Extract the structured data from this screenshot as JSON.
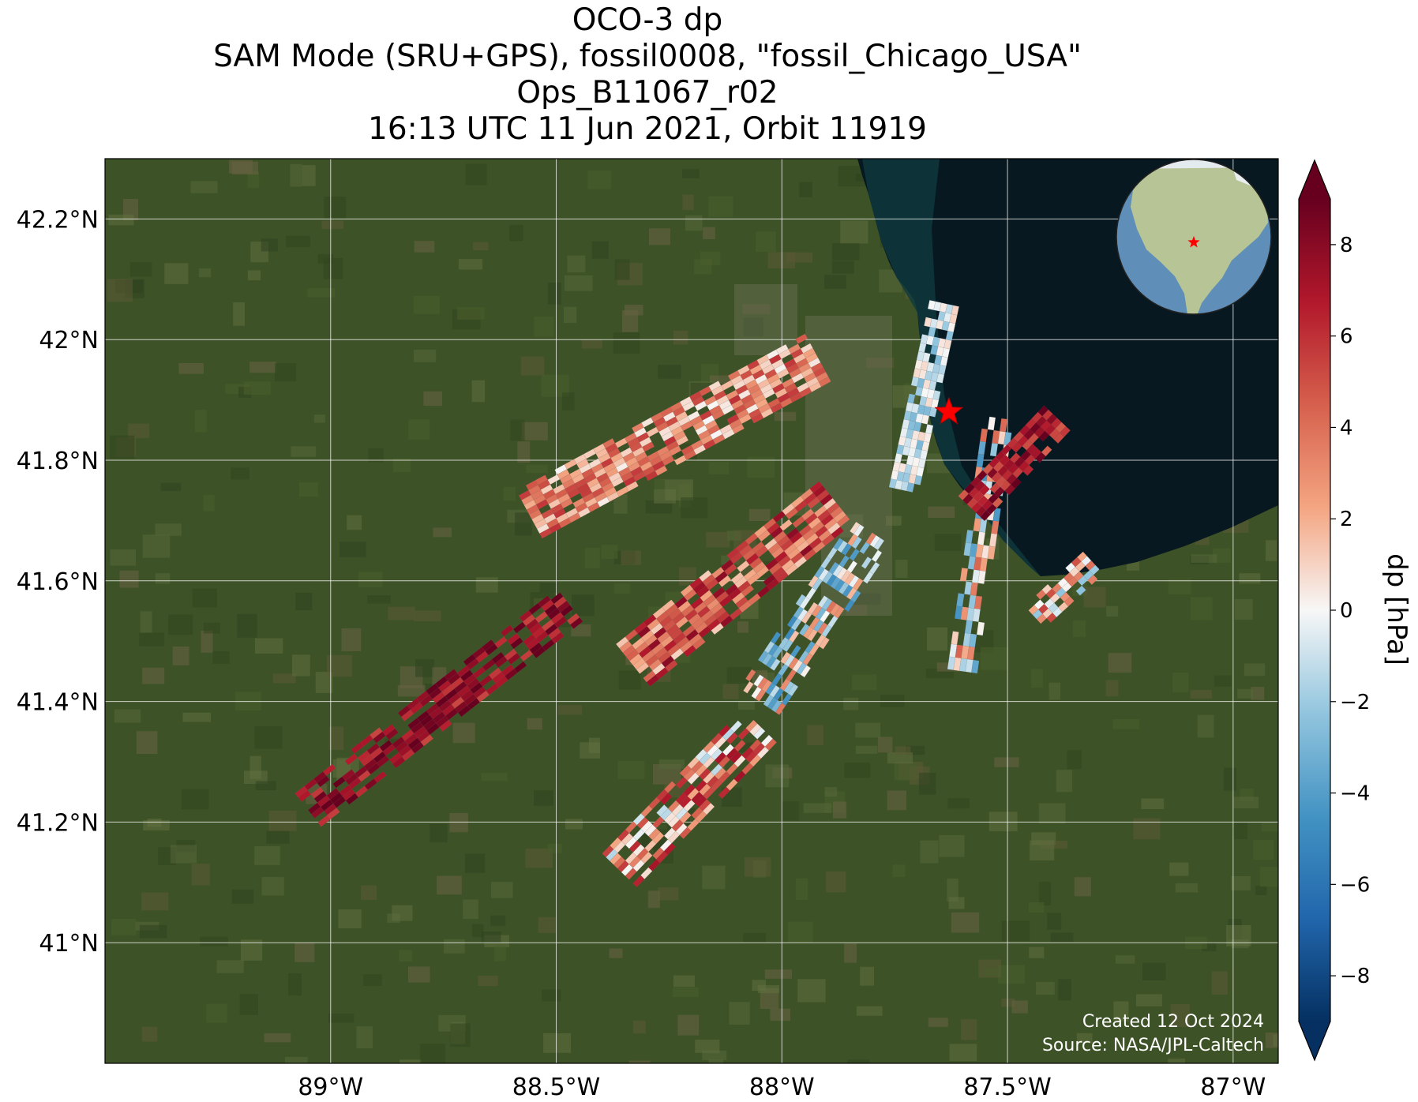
{
  "title": {
    "line1": "OCO-3 dp",
    "line2": "SAM Mode (SRU+GPS), fossil0008, \"fossil_Chicago_USA\"",
    "line3": "Ops_B11067_r02",
    "line4": "16:13 UTC 11 Jun 2021, Orbit 11919"
  },
  "map": {
    "lon_range": [
      -89.5,
      -86.9
    ],
    "lat_range": [
      40.8,
      42.3
    ],
    "lon_ticks": [
      {
        "value": -89.0,
        "label": "89°W"
      },
      {
        "value": -88.5,
        "label": "88.5°W"
      },
      {
        "value": -88.0,
        "label": "88°W"
      },
      {
        "value": -87.5,
        "label": "87.5°W"
      },
      {
        "value": -87.0,
        "label": "87°W"
      }
    ],
    "lat_ticks": [
      {
        "value": 42.2,
        "label": "42.2°N"
      },
      {
        "value": 42.0,
        "label": "42°N"
      },
      {
        "value": 41.8,
        "label": "41.8°N"
      },
      {
        "value": 41.6,
        "label": "41.6°N"
      },
      {
        "value": 41.4,
        "label": "41.4°N"
      },
      {
        "value": 41.2,
        "label": "41.2°N"
      },
      {
        "value": 41.0,
        "label": "41°N"
      }
    ],
    "grid": true,
    "target_lon": -87.63,
    "target_lat": 41.88,
    "target_color": "#ff0000",
    "land_color": "#3d5226",
    "lake_color": "#071820",
    "inset": "globe centered on North America with red star at target",
    "credit_line1": "Created 12 Oct 2024",
    "credit_line2": "Source: NASA/JPL-Caltech"
  },
  "colorbar": {
    "label": "dp [hPa]",
    "colormap": "RdBu_r",
    "range": [
      -9,
      9
    ],
    "extend": "both",
    "ticks": [
      {
        "value": 8,
        "label": "8"
      },
      {
        "value": 6,
        "label": "6"
      },
      {
        "value": 4,
        "label": "4"
      },
      {
        "value": 2,
        "label": "2"
      },
      {
        "value": 0,
        "label": "0"
      },
      {
        "value": -2,
        "label": "−2"
      },
      {
        "value": -4,
        "label": "−4"
      },
      {
        "value": -6,
        "label": "−6"
      },
      {
        "value": -8,
        "label": "−8"
      }
    ]
  },
  "chart_data": {
    "type": "heatmap",
    "xlabel": "",
    "ylabel": "",
    "swaths": [
      {
        "start": [
          -89.05,
          41.22
        ],
        "end": [
          -88.47,
          41.56
        ],
        "cross": 0.07,
        "rows": 8,
        "cols": 28,
        "bias": 7.5,
        "noise": 2.2,
        "fill": 0.7
      },
      {
        "start": [
          -88.56,
          41.71
        ],
        "end": [
          -87.92,
          41.97
        ],
        "cross": 0.09,
        "rows": 10,
        "cols": 30,
        "bias": 3.0,
        "noise": 3.0,
        "fill": 0.9
      },
      {
        "start": [
          -88.33,
          41.46
        ],
        "end": [
          -87.88,
          41.73
        ],
        "cross": 0.09,
        "rows": 10,
        "cols": 22,
        "bias": 4.5,
        "noise": 3.5,
        "fill": 0.85
      },
      {
        "start": [
          -88.36,
          41.12
        ],
        "end": [
          -88.05,
          41.36
        ],
        "cross": 0.08,
        "rows": 9,
        "cols": 18,
        "bias": 3.0,
        "noise": 4.5,
        "fill": 0.7
      },
      {
        "start": [
          -88.05,
          41.4
        ],
        "end": [
          -87.8,
          41.68
        ],
        "cross": 0.08,
        "rows": 10,
        "cols": 18,
        "bias": -0.5,
        "noise": 4.5,
        "fill": 0.6
      },
      {
        "start": [
          -87.73,
          41.75
        ],
        "end": [
          -87.64,
          42.06
        ],
        "cross": 0.05,
        "rows": 5,
        "cols": 22,
        "bias": -1.0,
        "noise": 2.0,
        "fill": 0.9
      },
      {
        "start": [
          -87.6,
          41.45
        ],
        "end": [
          -87.52,
          41.87
        ],
        "cross": 0.05,
        "rows": 5,
        "cols": 20,
        "bias": 0.0,
        "noise": 4.5,
        "fill": 0.7
      },
      {
        "start": [
          -87.58,
          41.72
        ],
        "end": [
          -87.39,
          41.87
        ],
        "cross": 0.06,
        "rows": 6,
        "cols": 14,
        "bias": 7.0,
        "noise": 2.5,
        "fill": 0.85
      },
      {
        "start": [
          -87.44,
          41.54
        ],
        "end": [
          -87.31,
          41.63
        ],
        "cross": 0.05,
        "rows": 5,
        "cols": 10,
        "bias": 1.5,
        "noise": 4.0,
        "fill": 0.7
      }
    ]
  }
}
